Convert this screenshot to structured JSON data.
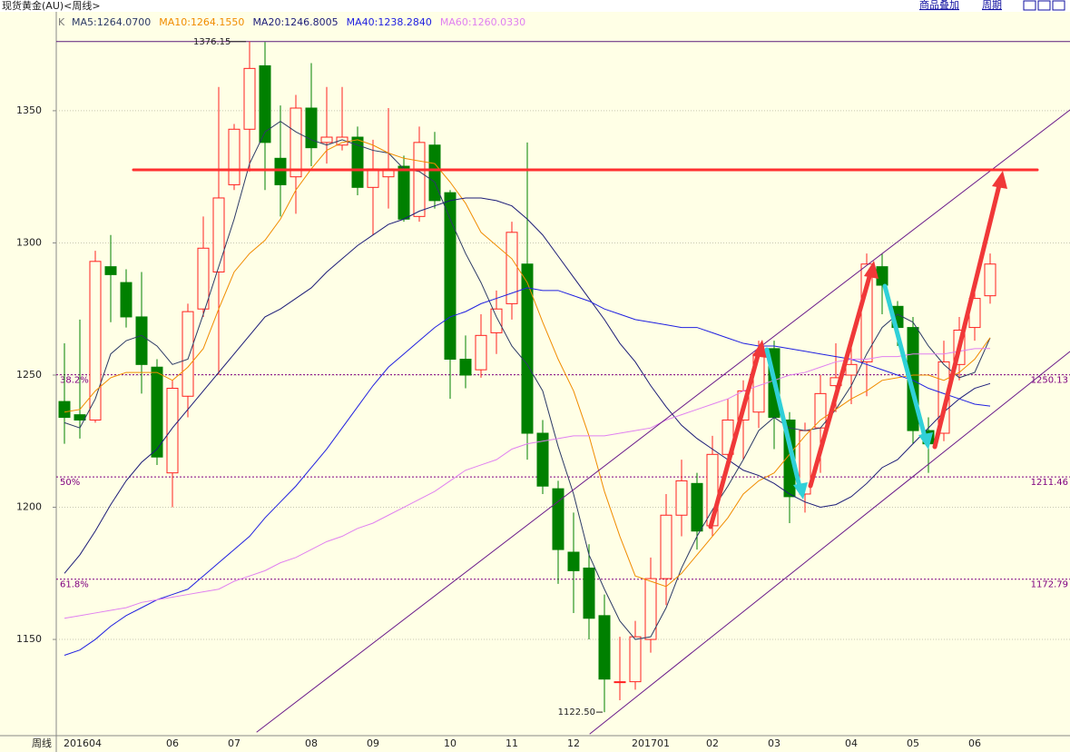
{
  "chart_data": {
    "type": "candlestick",
    "title": "现货黄金(AU)<周线>",
    "toolbar": [
      "商品叠加",
      "周期"
    ],
    "legend_prefix": "K",
    "x_label": "周线",
    "categories": [
      "201604",
      null,
      null,
      null,
      null,
      null,
      null,
      "06",
      null,
      null,
      null,
      "07",
      null,
      null,
      null,
      null,
      "08",
      null,
      null,
      null,
      "09",
      null,
      null,
      null,
      null,
      "10",
      null,
      null,
      null,
      "11",
      null,
      null,
      null,
      "12",
      null,
      null,
      null,
      null,
      "201701",
      null,
      null,
      null,
      "02",
      null,
      null,
      null,
      "03",
      null,
      null,
      null,
      null,
      "04",
      null,
      null,
      null,
      "05",
      null,
      null,
      null,
      "06",
      null
    ],
    "open": [
      1240,
      1235,
      1233,
      1291,
      1285,
      1272,
      1253,
      1213,
      1242,
      1275,
      1289,
      1322,
      1343,
      1367,
      1332,
      1325,
      1351,
      1338,
      1337,
      1340,
      1321,
      1325,
      1329,
      1310,
      1337,
      1319,
      1256,
      1252,
      1266,
      1277,
      1292,
      1228,
      1207,
      1183,
      1177,
      1159,
      1134,
      1134,
      1150,
      1173,
      1197,
      1209,
      1193,
      1220,
      1233,
      1236,
      1260,
      1233,
      1205,
      1230,
      1246,
      1250,
      1255,
      1291,
      1276,
      1268,
      1229,
      1228,
      1254,
      1268,
      1280
    ],
    "high": [
      1262,
      1271,
      1297,
      1303,
      1290,
      1289,
      1256,
      1248,
      1277,
      1310,
      1359,
      1345,
      1376.15,
      1376,
      1352,
      1356,
      1368,
      1359,
      1359,
      1344,
      1339,
      1351,
      1333,
      1344,
      1342,
      1320,
      1265,
      1273,
      1282,
      1308,
      1338,
      1233,
      1210,
      1198,
      1186,
      1167,
      1151,
      1157,
      1181,
      1205,
      1218,
      1213,
      1227,
      1241,
      1248,
      1263,
      1263,
      1236,
      1232,
      1250,
      1262,
      1261,
      1296,
      1296,
      1278,
      1272,
      1234,
      1263,
      1272,
      1282,
      1296
    ],
    "low": [
      1224,
      1226,
      1232,
      1270,
      1268,
      1243,
      1216,
      1200,
      1234,
      1272,
      1250,
      1320,
      1327,
      1320,
      1310,
      1311,
      1329,
      1330,
      1335,
      1318,
      1303,
      1313,
      1308,
      1308,
      1313,
      1241,
      1245,
      1249,
      1258,
      1271,
      1218,
      1205,
      1171,
      1160,
      1150,
      1122.5,
      1127,
      1131,
      1145,
      1163,
      1189,
      1184,
      1189,
      1217,
      1218,
      1230,
      1222,
      1194,
      1198,
      1213,
      1236,
      1239,
      1242,
      1273,
      1261,
      1224,
      1213,
      1225,
      1248,
      1263,
      1277
    ],
    "close": [
      1234,
      1233,
      1293,
      1288,
      1272,
      1254,
      1219,
      1245,
      1274,
      1298,
      1317,
      1343,
      1366,
      1338,
      1322,
      1351,
      1336,
      1340,
      1340,
      1321,
      1328,
      1328,
      1309,
      1338,
      1316,
      1256,
      1250,
      1265,
      1275,
      1304,
      1228,
      1208,
      1184,
      1176,
      1158,
      1135,
      1134,
      1151,
      1173,
      1197,
      1210,
      1191,
      1220,
      1233,
      1244,
      1258,
      1234,
      1204,
      1229,
      1243,
      1249,
      1254,
      1292,
      1284,
      1268,
      1229,
      1224,
      1255,
      1267,
      1279,
      1292
    ],
    "up_color": "#ff2020",
    "down_color": "#008000",
    "series": [
      {
        "name": "MA5:1264.0700",
        "color": "#2c3a66",
        "values": [
          1232,
          1230,
          1241,
          1258,
          1263,
          1265,
          1261,
          1254,
          1256,
          1273,
          1291,
          1309,
          1330,
          1342,
          1346,
          1342,
          1339,
          1337,
          1339,
          1337,
          1335,
          1334,
          1328,
          1327,
          1323,
          1309,
          1296,
          1285,
          1272,
          1261,
          1254,
          1244,
          1223,
          1205,
          1182,
          1169,
          1157,
          1150,
          1151,
          1162,
          1177,
          1189,
          1199,
          1208,
          1218,
          1229,
          1234,
          1230,
          1229,
          1230,
          1237,
          1246,
          1258,
          1268,
          1273,
          1270,
          1261,
          1254,
          1249,
          1251,
          1264.07
        ]
      },
      {
        "name": "MA10:1264.1550",
        "color": "#f08c00",
        "values": [
          1236,
          1237,
          1244,
          1249,
          1251,
          1251,
          1251,
          1248,
          1253,
          1260,
          1275,
          1289,
          1296,
          1301,
          1309,
          1320,
          1328,
          1335,
          1338,
          1339,
          1337,
          1334,
          1332,
          1331,
          1330,
          1323,
          1315,
          1304,
          1299,
          1294,
          1285,
          1270,
          1256,
          1244,
          1227,
          1206,
          1189,
          1174,
          1172,
          1170,
          1175,
          1182,
          1189,
          1196,
          1205,
          1210,
          1213,
          1220,
          1227,
          1233,
          1237,
          1241,
          1244,
          1248,
          1249,
          1250,
          1250,
          1248,
          1251,
          1256,
          1264.155
        ]
      },
      {
        "name": "MA20:1246.8005",
        "color": "#1c1c78",
        "values": [
          1175,
          1182,
          1191,
          1201,
          1210,
          1217,
          1222,
          1230,
          1237,
          1244,
          1251,
          1258,
          1265,
          1272,
          1275,
          1279,
          1283,
          1289,
          1294,
          1299,
          1303,
          1307,
          1309,
          1312,
          1314,
          1316,
          1317,
          1317,
          1316,
          1314,
          1309,
          1303,
          1295,
          1287,
          1279,
          1271,
          1262,
          1255,
          1246,
          1238,
          1231,
          1226,
          1222,
          1218,
          1214,
          1212,
          1209,
          1205,
          1202,
          1200,
          1201,
          1204,
          1209,
          1215,
          1218,
          1224,
          1230,
          1236,
          1241,
          1245,
          1246.8005
        ]
      },
      {
        "name": "MA40:1238.2840",
        "color": "#2020e0",
        "values": [
          1144,
          1146,
          1150,
          1155,
          1159,
          1162,
          1165,
          1167,
          1169,
          1174,
          1179,
          1184,
          1189,
          1196,
          1202,
          1208,
          1215,
          1222,
          1230,
          1238,
          1246,
          1253,
          1258,
          1263,
          1268,
          1272,
          1274,
          1277,
          1279,
          1281,
          1283,
          1282,
          1282,
          1280,
          1278,
          1275,
          1273,
          1271,
          1270,
          1269,
          1268,
          1268,
          1266,
          1264,
          1262,
          1261,
          1261,
          1260,
          1259,
          1258,
          1257,
          1256,
          1254,
          1252,
          1250,
          1248,
          1245,
          1243,
          1241,
          1239,
          1238.284
        ]
      },
      {
        "name": "MA60:1260.0330",
        "color": "#e080f0",
        "values": [
          1158,
          1159,
          1160,
          1161,
          1162,
          1164,
          1165,
          1166,
          1167,
          1168,
          1169,
          1172,
          1174,
          1176,
          1179,
          1181,
          1184,
          1187,
          1189,
          1192,
          1194,
          1197,
          1200,
          1203,
          1206,
          1210,
          1214,
          1216,
          1218,
          1222,
          1224,
          1225,
          1226,
          1227,
          1227,
          1227,
          1228,
          1229,
          1230,
          1233,
          1235,
          1237,
          1239,
          1241,
          1244,
          1246,
          1248,
          1250,
          1251,
          1253,
          1255,
          1256,
          1256,
          1257,
          1257,
          1258,
          1258,
          1258,
          1259,
          1260,
          1260.033
        ]
      }
    ],
    "ylim": [
      1113.6,
      1385.7
    ],
    "yticks": [
      1150,
      1200,
      1250,
      1300,
      1350
    ],
    "grid": true,
    "levels": [
      {
        "name": "38.2%",
        "value": 1250.13
      },
      {
        "name": "50%",
        "value": 1211.46
      },
      {
        "name": "61.8%",
        "value": 1172.79
      }
    ],
    "level_color": "#800080",
    "high_mark": {
      "value": 1376.15,
      "index": 12
    },
    "low_mark": {
      "value": 1122.5,
      "label": "1122.50",
      "index": 35
    }
  }
}
